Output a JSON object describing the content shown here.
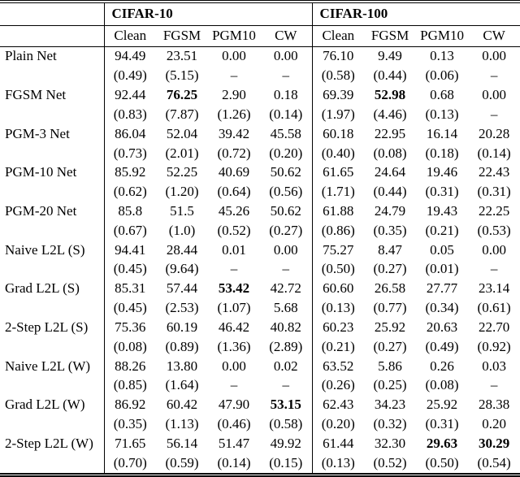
{
  "table": {
    "corner_label": "",
    "groups": [
      {
        "label": "CIFAR-10"
      },
      {
        "label": "CIFAR-100"
      }
    ],
    "columns": [
      "Clean",
      "FGSM",
      "PGM10",
      "CW"
    ],
    "rows": [
      {
        "label": "Plain Net",
        "c10": [
          "94.49",
          "23.51",
          "0.00",
          "0.00"
        ],
        "s10": [
          "(0.49)",
          "(5.15)",
          "–",
          "–"
        ],
        "c100": [
          "76.10",
          "9.49",
          "0.13",
          "0.00"
        ],
        "s100": [
          "(0.58)",
          "(0.44)",
          "(0.06)",
          "–"
        ]
      },
      {
        "label": "FGSM Net",
        "c10": [
          "92.44",
          "76.25",
          "2.90",
          "0.18"
        ],
        "s10": [
          "(0.83)",
          "(7.87)",
          "(1.26)",
          "(0.14)"
        ],
        "c100": [
          "69.39",
          "52.98",
          "0.68",
          "0.00"
        ],
        "s100": [
          "(1.97)",
          "(4.46)",
          "(0.13)",
          "–"
        ]
      },
      {
        "label": "PGM-3 Net",
        "c10": [
          "86.04",
          "52.04",
          "39.42",
          "45.58"
        ],
        "s10": [
          "(0.73)",
          "(2.01)",
          "(0.72)",
          "(0.20)"
        ],
        "c100": [
          "60.18",
          "22.95",
          "16.14",
          "20.28"
        ],
        "s100": [
          "(0.40)",
          "(0.08)",
          "(0.18)",
          "(0.14)"
        ]
      },
      {
        "label": "PGM-10 Net",
        "c10": [
          "85.92",
          "52.25",
          "40.69",
          "50.62"
        ],
        "s10": [
          "(0.62)",
          "(1.20)",
          "(0.64)",
          "(0.56)"
        ],
        "c100": [
          "61.65",
          "24.64",
          "19.46",
          "22.43"
        ],
        "s100": [
          "(1.71)",
          "(0.44)",
          "(0.31)",
          "(0.31)"
        ]
      },
      {
        "label": "PGM-20 Net",
        "c10": [
          "85.8",
          "51.5",
          "45.26",
          "50.62"
        ],
        "s10": [
          "(0.67)",
          "(1.0)",
          "(0.52)",
          "(0.27)"
        ],
        "c100": [
          "61.88",
          "24.79",
          "19.43",
          "22.25"
        ],
        "s100": [
          "(0.86)",
          "(0.35)",
          "(0.21)",
          "(0.53)"
        ]
      },
      {
        "label": "Naive L2L (S)",
        "c10": [
          "94.41",
          "28.44",
          "0.01",
          "0.00"
        ],
        "s10": [
          "(0.45)",
          "(9.64)",
          "–",
          "–"
        ],
        "c100": [
          "75.27",
          "8.47",
          "0.05",
          "0.00"
        ],
        "s100": [
          "(0.50)",
          "(0.27)",
          "(0.01)",
          "–"
        ]
      },
      {
        "label": "Grad L2L (S)",
        "c10": [
          "85.31",
          "57.44",
          "53.42",
          "42.72"
        ],
        "s10": [
          "(0.45)",
          "(2.53)",
          "(1.07)",
          "5.68"
        ],
        "c100": [
          "60.60",
          "26.58",
          "27.77",
          "23.14"
        ],
        "s100": [
          "(0.13)",
          "(0.77)",
          "(0.34)",
          "(0.61)"
        ]
      },
      {
        "label": "2-Step L2L (S)",
        "c10": [
          "75.36",
          "60.19",
          "46.42",
          "40.82"
        ],
        "s10": [
          "(0.08)",
          "(0.89)",
          "(1.36)",
          "(2.89)"
        ],
        "c100": [
          "60.23",
          "25.92",
          "20.63",
          "22.70"
        ],
        "s100": [
          "(0.21)",
          "(0.27)",
          "(0.49)",
          "(0.92)"
        ]
      },
      {
        "label": "Naive L2L (W)",
        "c10": [
          "88.26",
          "13.80",
          "0.00",
          "0.02"
        ],
        "s10": [
          "(0.85)",
          "(1.64)",
          "–",
          "–"
        ],
        "c100": [
          "63.52",
          "5.86",
          "0.26",
          "0.03"
        ],
        "s100": [
          "(0.26)",
          "(0.25)",
          "(0.08)",
          "–"
        ]
      },
      {
        "label": "Grad L2L (W)",
        "c10": [
          "86.92",
          "60.42",
          "47.90",
          "53.15"
        ],
        "s10": [
          "(0.35)",
          "(1.13)",
          "(0.46)",
          "(0.58)"
        ],
        "c100": [
          "62.43",
          "34.23",
          "25.92",
          "28.38"
        ],
        "s100": [
          "(0.20)",
          "(0.32)",
          "(0.31)",
          "0.20"
        ]
      },
      {
        "label": "2-Step L2L (W)",
        "c10": [
          "71.65",
          "56.14",
          "51.47",
          "49.92"
        ],
        "s10": [
          "(0.70)",
          "(0.59)",
          "(0.14)",
          "(0.15)"
        ],
        "c100": [
          "61.44",
          "32.30",
          "29.63",
          "30.29"
        ],
        "s100": [
          "(0.13)",
          "(0.52)",
          "(0.50)",
          "(0.54)"
        ]
      }
    ],
    "bold_cells": [
      {
        "row": 1,
        "side": "c10",
        "col": 1
      },
      {
        "row": 1,
        "side": "c100",
        "col": 1
      },
      {
        "row": 6,
        "side": "c10",
        "col": 2
      },
      {
        "row": 9,
        "side": "c10",
        "col": 3
      },
      {
        "row": 10,
        "side": "c100",
        "col": 2
      },
      {
        "row": 10,
        "side": "c100",
        "col": 3
      }
    ]
  }
}
